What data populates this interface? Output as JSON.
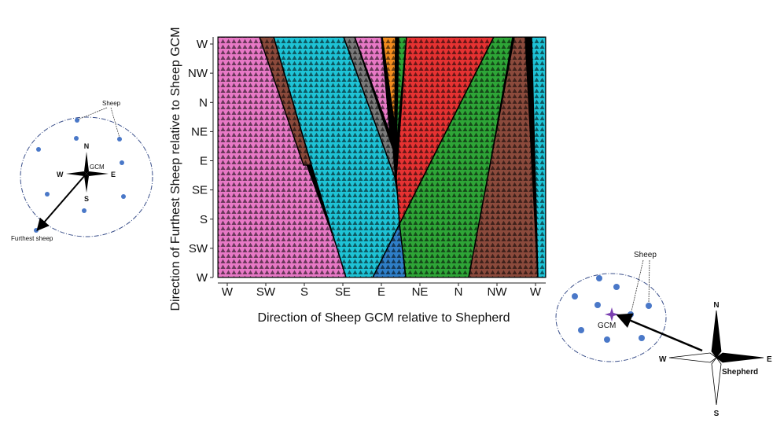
{
  "colors": {
    "pink": "#e879c6",
    "cyan": "#1ec3d6",
    "brown": "#8b4a3c",
    "gray": "#7a7a7a",
    "orange": "#f28c1e",
    "green": "#2ea537",
    "red": "#e63232",
    "blue": "#2f7fc8",
    "sheep": "#4a78c8",
    "gcm_star": "#7a3fb0"
  },
  "plot": {
    "xlabel": "Direction of Sheep GCM relative to Shepherd",
    "ylabel": "Direction of Furthest Sheep relative to Sheep GCM",
    "x_ticks": [
      "W",
      "SW",
      "S",
      "SE",
      "E",
      "NE",
      "N",
      "NW",
      "W"
    ],
    "y_ticks": [
      "W",
      "NW",
      "N",
      "NE",
      "E",
      "SE",
      "S",
      "SW",
      "W"
    ]
  },
  "left_diagram": {
    "sheep_label": "Sheep",
    "gcm_label": "GCM",
    "furthest_label": "Furthest sheep",
    "compass": {
      "n": "N",
      "s": "S",
      "e": "E",
      "w": "W"
    }
  },
  "right_diagram": {
    "sheep_label": "Sheep",
    "gcm_label": "GCM",
    "shepherd_label": "Shepherd",
    "compass": {
      "n": "N",
      "s": "S",
      "e": "E",
      "w": "W"
    }
  }
}
